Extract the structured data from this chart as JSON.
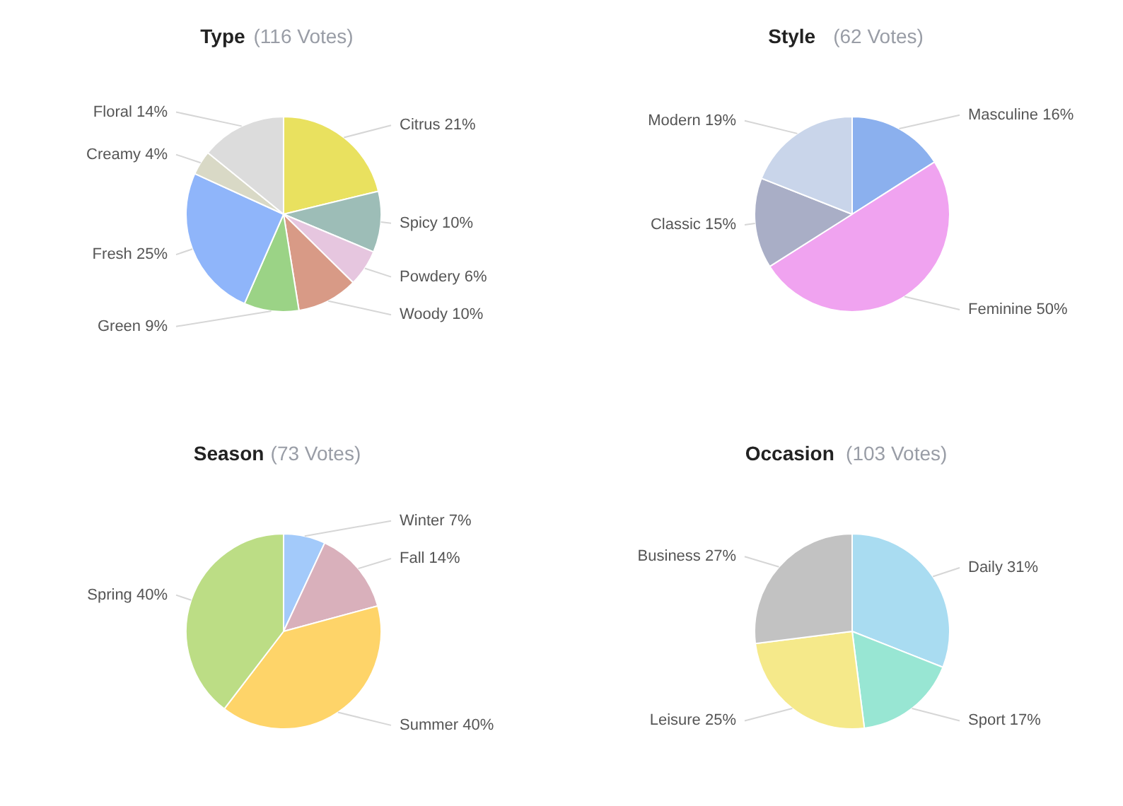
{
  "chart_data": [
    {
      "type": "pie",
      "title": "Type",
      "subtitle": "(116 Votes)",
      "categories": [
        "Citrus",
        "Spicy",
        "Powdery",
        "Woody",
        "Green",
        "Fresh",
        "Creamy",
        "Floral"
      ],
      "values": [
        21,
        10,
        6,
        10,
        9,
        25,
        4,
        14
      ],
      "value_labels": [
        "21%",
        "10%",
        "6%",
        "10%",
        "9%",
        "25%",
        "4%",
        "14%"
      ],
      "colors": [
        "#e9e15f",
        "#9dbdb7",
        "#e6c6df",
        "#d89a86",
        "#9bd386",
        "#8fb5fa",
        "#d9d9c6",
        "#dcdcdc"
      ]
    },
    {
      "type": "pie",
      "title": "Style",
      "subtitle": "(62 Votes)",
      "categories": [
        "Masculine",
        "Feminine",
        "Classic",
        "Modern"
      ],
      "values": [
        16,
        50,
        15,
        19
      ],
      "value_labels": [
        "16%",
        "50%",
        "15%",
        "19%"
      ],
      "colors": [
        "#8bb0ee",
        "#f0a3f0",
        "#a9aec6",
        "#c9d5ea"
      ]
    },
    {
      "type": "pie",
      "title": "Season",
      "subtitle": "(73 Votes)",
      "categories": [
        "Winter",
        "Fall",
        "Summer",
        "Spring"
      ],
      "values": [
        7,
        14,
        40,
        40
      ],
      "value_labels": [
        "7%",
        "14%",
        "40%",
        "40%"
      ],
      "colors": [
        "#a3cafa",
        "#d9b0bb",
        "#fed469",
        "#bcdd85"
      ]
    },
    {
      "type": "pie",
      "title": "Occasion",
      "subtitle": "(103 Votes)",
      "categories": [
        "Daily",
        "Sport",
        "Leisure",
        "Business"
      ],
      "values": [
        31,
        17,
        25,
        27
      ],
      "value_labels": [
        "31%",
        "17%",
        "25%",
        "27%"
      ],
      "colors": [
        "#a9dcf1",
        "#98e6d3",
        "#f5e98a",
        "#c2c2c2"
      ]
    }
  ]
}
